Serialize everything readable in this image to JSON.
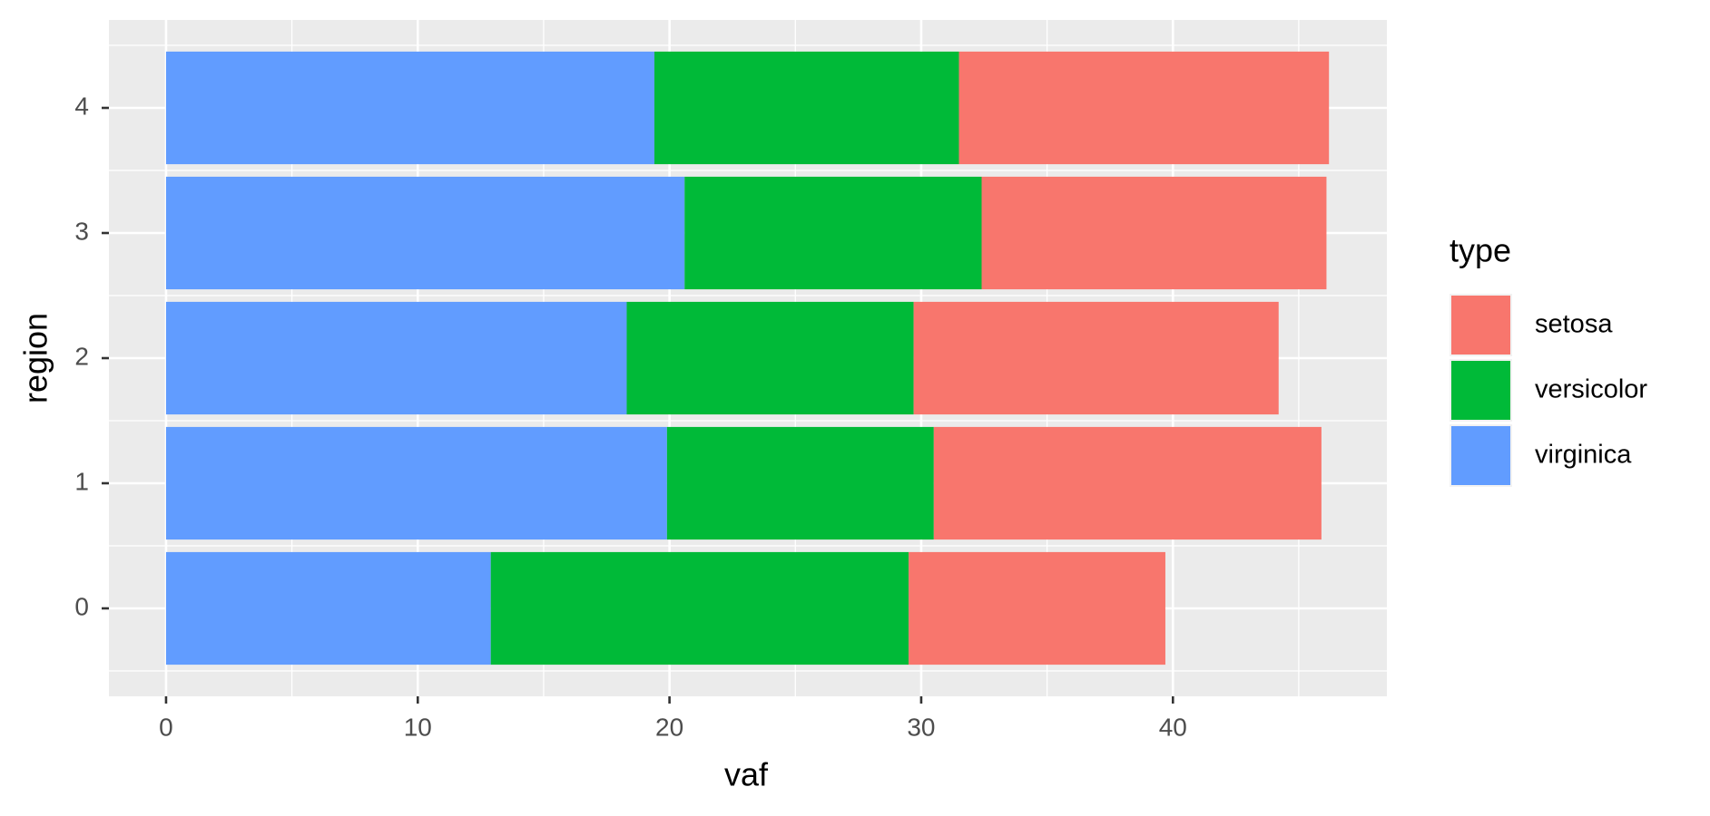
{
  "chart_data": {
    "type": "stacked_barh",
    "x_label": "vaf",
    "y_label": "region",
    "categories": [
      "0",
      "1",
      "2",
      "3",
      "4"
    ],
    "legend_title": "type",
    "series": [
      {
        "name": "setosa",
        "color": "#f8766d",
        "values": [
          10.2,
          15.4,
          14.5,
          13.7,
          14.7
        ]
      },
      {
        "name": "versicolor",
        "color": "#00ba38",
        "values": [
          16.6,
          10.6,
          11.4,
          11.8,
          12.1
        ]
      },
      {
        "name": "virginica",
        "color": "#619cff",
        "values": [
          12.9,
          19.9,
          18.3,
          20.6,
          19.4
        ]
      }
    ],
    "stack_order": [
      "virginica",
      "versicolor",
      "setosa"
    ],
    "xlim": [
      -2.27,
      48.5
    ],
    "xticks": [
      0,
      10,
      20,
      30,
      40
    ],
    "xminor": [
      5,
      15,
      25,
      35,
      45
    ],
    "grid": true,
    "legend": "right"
  }
}
